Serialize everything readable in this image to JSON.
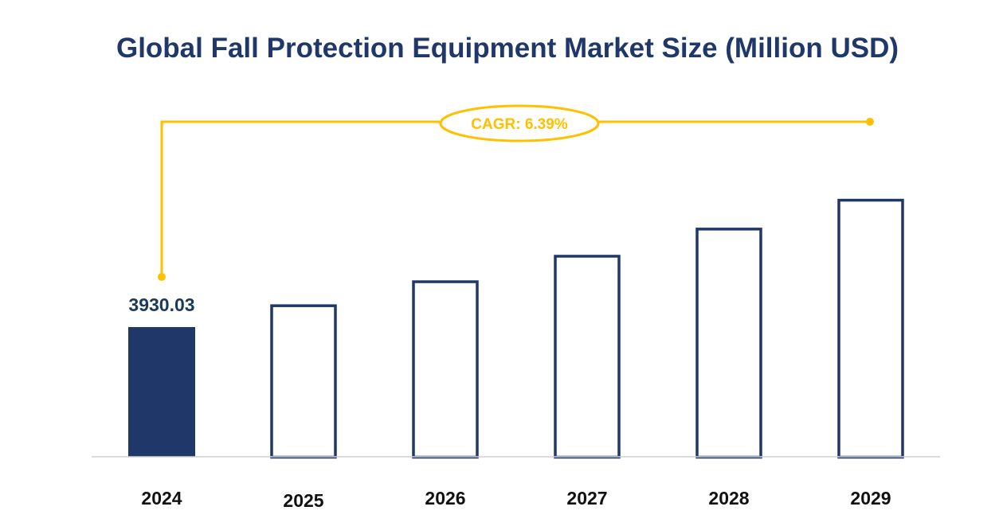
{
  "chart_data": {
    "type": "bar",
    "title": "Global Fall Protection Equipment Market Size (Million USD)",
    "xlabel": "",
    "ylabel": "",
    "categories": [
      "2024",
      "2025",
      "2026",
      "2027",
      "2028",
      "2029"
    ],
    "values": [
      3930.03,
      4181.2,
      4448.4,
      4732.6,
      5035.0,
      5356.8
    ],
    "data_labels": [
      "3930.03",
      null,
      null,
      null,
      null,
      null
    ],
    "highlighted_index": 0,
    "ylim": [
      2494,
      6040
    ],
    "grid": false,
    "annotation": "CAGR: 6.39%",
    "colors": {
      "bar": "#1f3869",
      "annotation": "#ffc000",
      "label": "#1a3a5c",
      "axis": "#d0d0d0"
    }
  }
}
